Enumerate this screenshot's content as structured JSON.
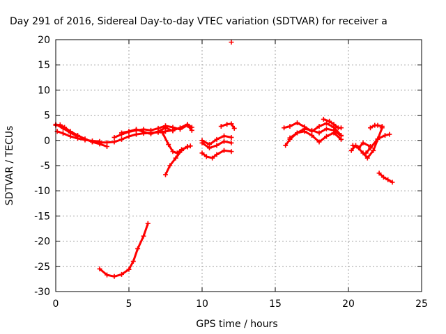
{
  "chart_data": {
    "type": "scatter",
    "title": "Day 291 of 2016, Sidereal Day-to-day VTEC variation (SDTVAR) for receiver a",
    "xlabel": "GPS time / hours",
    "ylabel": "SDTVAR / TECUs",
    "xlim": [
      0,
      25
    ],
    "ylim": [
      -30,
      20
    ],
    "xticks": [
      0,
      5,
      10,
      15,
      20,
      25
    ],
    "yticks": [
      20,
      15,
      10,
      5,
      0,
      -5,
      -10,
      -15,
      -20,
      -25,
      -30
    ],
    "grid": true,
    "marker": "plus",
    "color": "#ff0000",
    "series": [
      {
        "x": [
          0.0,
          0.3,
          0.6,
          1.0,
          1.5,
          2.0,
          2.5,
          3.0,
          3.5
        ],
        "y": [
          3.0,
          3.1,
          2.6,
          1.8,
          1.0,
          0.3,
          -0.3,
          -0.7,
          -1.2
        ]
      },
      {
        "x": [
          0.1,
          0.5,
          1.0,
          1.5,
          2.0,
          2.5,
          3.0
        ],
        "y": [
          1.8,
          1.4,
          0.8,
          0.4,
          0.1,
          -0.1,
          -0.2
        ]
      },
      {
        "x": [
          0.0,
          0.5,
          1.0,
          1.5
        ],
        "y": [
          3.2,
          2.4,
          1.5,
          0.8
        ]
      },
      {
        "x": [
          2.5,
          3.0,
          3.5,
          4.0,
          4.5,
          5.0,
          5.5,
          6.0,
          6.5,
          7.0,
          7.5,
          8.0,
          8.5,
          9.0,
          9.3
        ],
        "y": [
          -0.3,
          -0.4,
          -0.4,
          -0.3,
          0.2,
          0.8,
          1.2,
          1.4,
          1.5,
          1.6,
          1.8,
          2.0,
          2.5,
          3.2,
          2.6
        ]
      },
      {
        "x": [
          4.0,
          4.5,
          5.0,
          5.5,
          6.0,
          6.5,
          7.0,
          7.5,
          8.0,
          8.5,
          9.0,
          9.3
        ],
        "y": [
          0.6,
          1.2,
          1.7,
          2.0,
          2.2,
          2.0,
          2.4,
          2.9,
          2.6,
          2.2,
          3.0,
          2.0
        ]
      },
      {
        "x": [
          4.5,
          5.0,
          5.5,
          6.0,
          6.5,
          7.0,
          7.5,
          8.0
        ],
        "y": [
          1.5,
          1.8,
          2.2,
          1.7,
          1.3,
          1.8,
          2.5,
          1.9
        ]
      },
      {
        "x": [
          7.3,
          7.7,
          8.0,
          8.3,
          8.6,
          9.0,
          9.2
        ],
        "y": [
          1.5,
          -0.8,
          -2.2,
          -2.5,
          -1.8,
          -1.3,
          -1.1
        ]
      },
      {
        "x": [
          7.5,
          7.8,
          8.2,
          8.6,
          9.0
        ],
        "y": [
          -6.8,
          -5.0,
          -3.5,
          -2.0,
          -1.2
        ]
      },
      {
        "x": [
          10.0,
          10.3,
          10.7,
          11.0,
          11.5,
          12.0
        ],
        "y": [
          -2.5,
          -3.2,
          -3.5,
          -2.8,
          -2.0,
          -2.2
        ]
      },
      {
        "x": [
          10.0,
          10.5,
          11.0,
          11.5,
          12.0
        ],
        "y": [
          0.0,
          -0.8,
          0.2,
          0.9,
          0.6
        ]
      },
      {
        "x": [
          10.0,
          10.5,
          11.0,
          11.5,
          12.0
        ],
        "y": [
          -0.5,
          -1.5,
          -1.0,
          -0.2,
          -0.5
        ]
      },
      {
        "x": [
          11.3,
          11.7,
          12.0,
          12.2
        ],
        "y": [
          2.8,
          3.2,
          3.3,
          2.4
        ]
      },
      {
        "x": [
          12.0
        ],
        "y": [
          19.5
        ]
      },
      {
        "x": [
          3.0,
          3.5,
          4.0,
          4.5,
          5.0,
          5.3,
          5.6,
          6.0,
          6.3
        ],
        "y": [
          -25.5,
          -26.7,
          -27.0,
          -26.6,
          -25.6,
          -24.0,
          -21.5,
          -19.0,
          -16.5
        ]
      },
      {
        "x": [
          15.6,
          16.0,
          16.5,
          17.0,
          17.5,
          18.0,
          18.5,
          19.0,
          19.5
        ],
        "y": [
          2.5,
          2.8,
          3.5,
          2.7,
          1.8,
          2.8,
          3.4,
          2.6,
          1.0
        ]
      },
      {
        "x": [
          15.7,
          16.0,
          16.5,
          17.0,
          17.5,
          18.0,
          18.5,
          19.0,
          19.5
        ],
        "y": [
          -1.0,
          0.2,
          1.5,
          1.8,
          1.0,
          -0.3,
          0.8,
          1.5,
          0.2
        ]
      },
      {
        "x": [
          16.0,
          16.5,
          17.0,
          17.5,
          18.0,
          18.5,
          19.0,
          19.5
        ],
        "y": [
          0.5,
          1.5,
          2.3,
          2.0,
          1.5,
          2.3,
          2.0,
          0.9
        ]
      },
      {
        "x": [
          18.3,
          18.7,
          19.0,
          19.3,
          19.5
        ],
        "y": [
          4.2,
          3.8,
          3.2,
          2.5,
          2.5
        ]
      },
      {
        "x": [
          20.2,
          20.5,
          21.0,
          21.3,
          21.7,
          22.0,
          22.3
        ],
        "y": [
          -2.0,
          -1.0,
          -2.5,
          -3.5,
          -2.0,
          0.2,
          2.5
        ]
      },
      {
        "x": [
          20.3,
          20.7,
          21.0,
          21.5
        ],
        "y": [
          -1.0,
          -1.5,
          -0.5,
          -1.2
        ]
      },
      {
        "x": [
          21.2,
          21.5,
          22.0,
          22.5,
          22.8
        ],
        "y": [
          -2.5,
          -1.5,
          0.3,
          1.0,
          1.2
        ]
      },
      {
        "x": [
          21.5,
          21.8,
          22.0,
          22.3
        ],
        "y": [
          2.5,
          3.0,
          3.0,
          2.8
        ]
      },
      {
        "x": [
          22.1,
          22.4,
          22.7,
          23.0
        ],
        "y": [
          -6.5,
          -7.3,
          -7.8,
          -8.3
        ]
      }
    ]
  }
}
